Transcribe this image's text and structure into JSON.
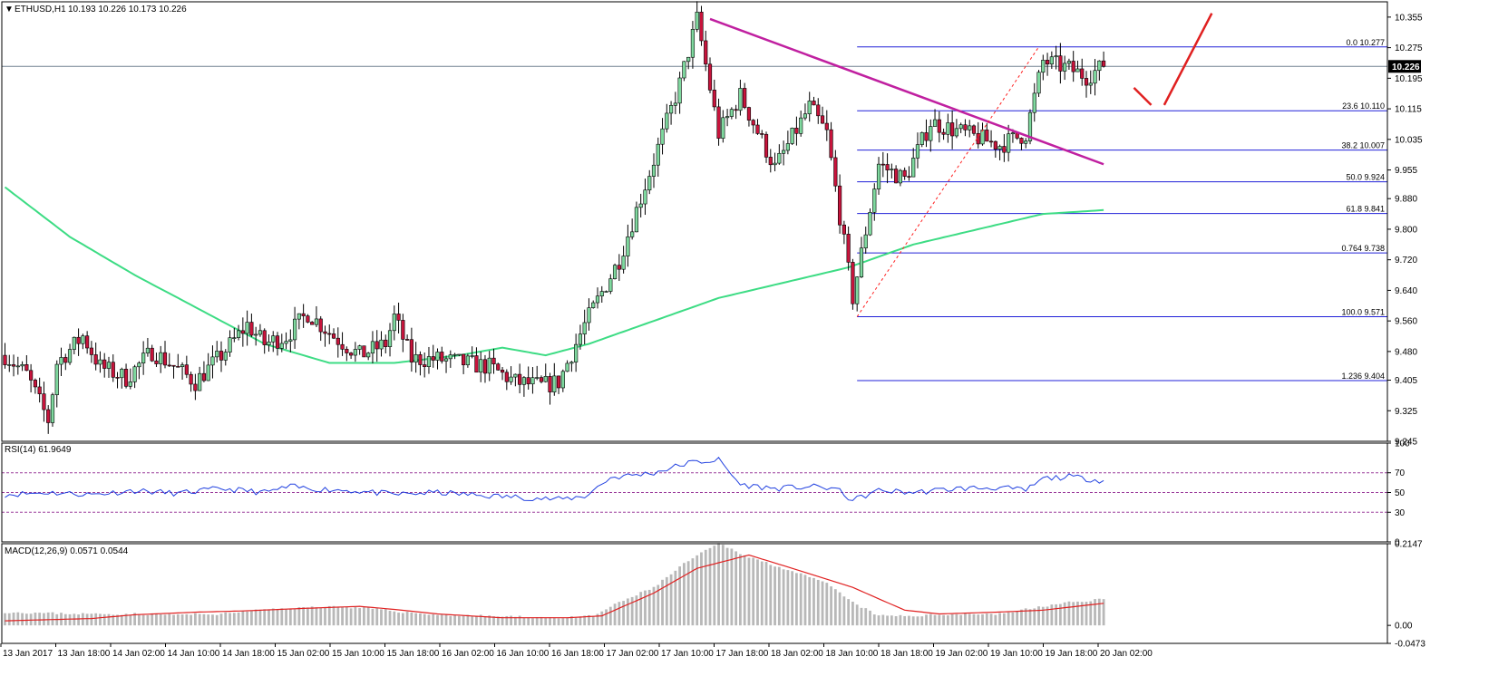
{
  "chart_data": {
    "type": "candlestick",
    "symbol_label": "ETHUSD,H1",
    "header_values": "10.193 10.226 10.173 10.226",
    "last_price_label": "10.226",
    "last_price": 10.226,
    "price_ylim": [
      9.245,
      10.395
    ],
    "price_ticks": [
      "10.355",
      "10.275",
      "10.195",
      "10.115",
      "10.035",
      "9.955",
      "9.880",
      "9.800",
      "9.720",
      "9.640",
      "9.560",
      "9.480",
      "9.405",
      "9.325",
      "9.245"
    ],
    "x_tick_labels": [
      "13 Jan 2017",
      "13 Jan 18:00",
      "14 Jan 02:00",
      "14 Jan 10:00",
      "14 Jan 18:00",
      "15 Jan 02:00",
      "15 Jan 10:00",
      "15 Jan 18:00",
      "16 Jan 02:00",
      "16 Jan 10:00",
      "16 Jan 18:00",
      "17 Jan 02:00",
      "17 Jan 10:00",
      "17 Jan 18:00",
      "18 Jan 02:00",
      "18 Jan 10:00",
      "18 Jan 18:00",
      "19 Jan 02:00",
      "19 Jan 10:00",
      "19 Jan 18:00",
      "20 Jan 02:00"
    ],
    "candle_count": 180,
    "anchors": [
      [
        0,
        9.47
      ],
      [
        5,
        9.42
      ],
      [
        10,
        9.3
      ],
      [
        12,
        9.45
      ],
      [
        18,
        9.52
      ],
      [
        22,
        9.44
      ],
      [
        28,
        9.41
      ],
      [
        34,
        9.48
      ],
      [
        38,
        9.45
      ],
      [
        44,
        9.4
      ],
      [
        50,
        9.47
      ],
      [
        56,
        9.55
      ],
      [
        60,
        9.5
      ],
      [
        65,
        9.52
      ],
      [
        70,
        9.58
      ],
      [
        76,
        9.52
      ],
      [
        82,
        9.47
      ],
      [
        88,
        9.5
      ],
      [
        90,
        9.57
      ],
      [
        94,
        9.46
      ],
      [
        100,
        9.46
      ],
      [
        106,
        9.45
      ],
      [
        112,
        9.44
      ],
      [
        118,
        9.4
      ],
      [
        124,
        9.39
      ],
      [
        128,
        9.4
      ],
      [
        134,
        9.55
      ],
      [
        142,
        9.72
      ],
      [
        150,
        9.98
      ],
      [
        156,
        10.18
      ],
      [
        160,
        10.35
      ],
      [
        165,
        10.05
      ],
      [
        170,
        10.15
      ],
      [
        178,
        9.96
      ],
      [
        186,
        10.12
      ],
      [
        190,
        10.05
      ],
      [
        196,
        9.62
      ],
      [
        202,
        9.97
      ],
      [
        208,
        9.93
      ],
      [
        214,
        10.08
      ],
      [
        222,
        10.05
      ],
      [
        230,
        10.02
      ],
      [
        236,
        10.05
      ],
      [
        240,
        10.24
      ],
      [
        246,
        10.22
      ],
      [
        250,
        10.2
      ],
      [
        254,
        10.226
      ]
    ],
    "ema": {
      "value_anchors": [
        [
          0,
          9.91
        ],
        [
          15,
          9.78
        ],
        [
          30,
          9.68
        ],
        [
          45,
          9.59
        ],
        [
          60,
          9.5
        ],
        [
          75,
          9.45
        ],
        [
          90,
          9.45
        ],
        [
          105,
          9.47
        ],
        [
          115,
          9.49
        ],
        [
          125,
          9.47
        ],
        [
          135,
          9.5
        ],
        [
          150,
          9.56
        ],
        [
          165,
          9.62
        ],
        [
          180,
          9.66
        ],
        [
          195,
          9.7
        ],
        [
          210,
          9.76
        ],
        [
          225,
          9.8
        ],
        [
          240,
          9.84
        ],
        [
          254,
          9.85
        ]
      ]
    },
    "trendline": {
      "start": {
        "x_index": 163,
        "price": 10.35
      },
      "end": {
        "x_index": 254,
        "price": 9.97
      }
    },
    "projection": [
      {
        "x_index": 261,
        "price": 10.17
      },
      {
        "x_index": 265,
        "price": 10.125
      },
      {
        "x_index": 268,
        "price": 10.125
      },
      {
        "x_index": 279,
        "price": 10.365
      }
    ],
    "retracement_dashed": {
      "start": {
        "x_index": 197,
        "price": 9.571
      },
      "end": {
        "x_index": 239,
        "price": 10.277
      }
    },
    "fibonacci": {
      "x_start_index": 197,
      "levels": [
        {
          "label": "0.0  10.277",
          "price": 10.277
        },
        {
          "label": "23.6  10.110",
          "price": 10.11
        },
        {
          "label": "38.2  10.007",
          "price": 10.007
        },
        {
          "label": "50.0  9.924",
          "price": 9.924
        },
        {
          "label": "61.8  9.841",
          "price": 9.841
        },
        {
          "label": "0.764  9.738",
          "price": 9.738
        },
        {
          "label": "100.0  9.571",
          "price": 9.571
        },
        {
          "label": "1.236  9.404",
          "price": 9.404
        }
      ]
    },
    "rsi": {
      "label": "RSI(14) 61.9649",
      "ylim": [
        0,
        100
      ],
      "ticks": [
        "100",
        "70",
        "50",
        "30",
        "0"
      ],
      "levels": [
        70,
        50,
        30
      ],
      "value_anchors": [
        [
          0,
          48
        ],
        [
          10,
          50
        ],
        [
          20,
          48
        ],
        [
          30,
          52
        ],
        [
          40,
          49
        ],
        [
          50,
          54
        ],
        [
          60,
          50
        ],
        [
          66,
          56
        ],
        [
          70,
          54
        ],
        [
          80,
          52
        ],
        [
          90,
          48
        ],
        [
          100,
          50
        ],
        [
          110,
          47
        ],
        [
          120,
          45
        ],
        [
          128,
          43
        ],
        [
          134,
          46
        ],
        [
          140,
          65
        ],
        [
          150,
          70
        ],
        [
          158,
          80
        ],
        [
          165,
          83
        ],
        [
          170,
          58
        ],
        [
          178,
          54
        ],
        [
          186,
          56
        ],
        [
          192,
          54
        ],
        [
          196,
          42
        ],
        [
          202,
          52
        ],
        [
          210,
          50
        ],
        [
          220,
          54
        ],
        [
          230,
          55
        ],
        [
          236,
          52
        ],
        [
          240,
          64
        ],
        [
          246,
          66
        ],
        [
          254,
          62
        ]
      ]
    },
    "macd": {
      "label": "MACD(12,26,9) 0.0571 0.0544",
      "ylim": [
        -0.0473,
        0.2147
      ],
      "ticks": [
        "0.2147",
        "0.00",
        "-0.0473"
      ],
      "hist_anchors": [
        [
          0,
          0.035
        ],
        [
          10,
          0.032
        ],
        [
          20,
          0.03
        ],
        [
          30,
          0.03
        ],
        [
          40,
          0.028
        ],
        [
          50,
          0.03
        ],
        [
          56,
          0.038
        ],
        [
          66,
          0.045
        ],
        [
          76,
          0.05
        ],
        [
          84,
          0.045
        ],
        [
          92,
          0.035
        ],
        [
          100,
          0.028
        ],
        [
          110,
          0.025
        ],
        [
          120,
          0.022
        ],
        [
          130,
          0.02
        ],
        [
          136,
          0.025
        ],
        [
          142,
          0.06
        ],
        [
          150,
          0.1
        ],
        [
          158,
          0.17
        ],
        [
          165,
          0.215
        ],
        [
          172,
          0.18
        ],
        [
          180,
          0.15
        ],
        [
          190,
          0.11
        ],
        [
          196,
          0.06
        ],
        [
          202,
          0.025
        ],
        [
          210,
          0.025
        ],
        [
          220,
          0.03
        ],
        [
          230,
          0.03
        ],
        [
          240,
          0.05
        ],
        [
          246,
          0.06
        ],
        [
          254,
          0.07
        ]
      ],
      "signal_anchors": [
        [
          0,
          0.012
        ],
        [
          20,
          0.018
        ],
        [
          30,
          0.028
        ],
        [
          45,
          0.035
        ],
        [
          55,
          0.038
        ],
        [
          70,
          0.045
        ],
        [
          82,
          0.05
        ],
        [
          90,
          0.042
        ],
        [
          100,
          0.03
        ],
        [
          115,
          0.02
        ],
        [
          130,
          0.02
        ],
        [
          138,
          0.025
        ],
        [
          150,
          0.085
        ],
        [
          160,
          0.15
        ],
        [
          172,
          0.185
        ],
        [
          182,
          0.15
        ],
        [
          196,
          0.1
        ],
        [
          208,
          0.04
        ],
        [
          216,
          0.03
        ],
        [
          230,
          0.035
        ],
        [
          240,
          0.04
        ],
        [
          254,
          0.058
        ]
      ]
    }
  },
  "colors": {
    "bull_body": "#7fd99f",
    "bear_body": "#c8143c",
    "wick": "#000000",
    "ema_line": "#3ddc84",
    "trendline": "#c020a0",
    "projection": "#e02020",
    "retracement_dashed": "#ff2020",
    "fib_lines": "#2020d8",
    "last_price_line": "#708090",
    "rsi_line": "#2040e0",
    "rsi_levels": "#9b3b9b",
    "macd_hist": "#b8b8b8",
    "macd_signal": "#e02020",
    "price_box": "#000000"
  }
}
